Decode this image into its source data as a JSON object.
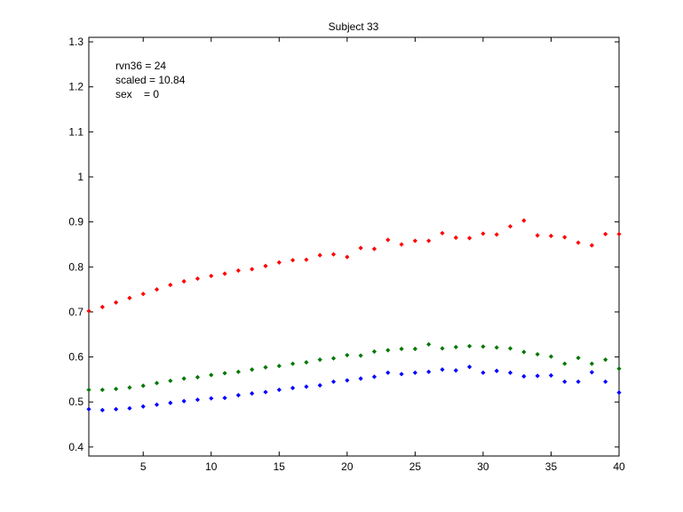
{
  "chart_data": {
    "type": "scatter",
    "title": "Subject 33",
    "xlabel": "",
    "ylabel": "",
    "xlim": [
      1,
      40
    ],
    "ylim": [
      0.38,
      1.31
    ],
    "xticks": [
      5,
      10,
      15,
      20,
      25,
      30,
      35,
      40
    ],
    "yticks": [
      0.4,
      0.5,
      0.6,
      0.7,
      0.8,
      0.9,
      1,
      1.1,
      1.2,
      1.3
    ],
    "ytick_labels": [
      "0.4",
      "0.5",
      "0.6",
      "0.7",
      "0.8",
      "0.9",
      "1",
      "1.1",
      "1.2",
      "1.3"
    ],
    "grid": false,
    "annotations": [
      "rvn36 = 24",
      "scaled = 10.84",
      "sex    = 0"
    ],
    "x": [
      1,
      2,
      3,
      4,
      5,
      6,
      7,
      8,
      9,
      10,
      11,
      12,
      13,
      14,
      15,
      16,
      17,
      18,
      19,
      20,
      21,
      22,
      23,
      24,
      25,
      26,
      27,
      28,
      29,
      30,
      31,
      32,
      33,
      34,
      35,
      36,
      37,
      38,
      39,
      40
    ],
    "series": [
      {
        "color": "#ff0000",
        "values": [
          0.702,
          0.711,
          0.721,
          0.731,
          0.74,
          0.75,
          0.76,
          0.768,
          0.774,
          0.78,
          0.785,
          0.792,
          0.795,
          0.802,
          0.81,
          0.815,
          0.816,
          0.826,
          0.828,
          0.822,
          0.842,
          0.84,
          0.86,
          0.85,
          0.858,
          0.858,
          0.875,
          0.865,
          0.864,
          0.874,
          0.872,
          0.89,
          0.903,
          0.87,
          0.869,
          0.866,
          0.854,
          0.848,
          0.873,
          0.873
        ]
      },
      {
        "color": "#007700",
        "values": [
          0.527,
          0.527,
          0.529,
          0.532,
          0.536,
          0.542,
          0.547,
          0.552,
          0.555,
          0.56,
          0.564,
          0.567,
          0.572,
          0.577,
          0.58,
          0.585,
          0.588,
          0.594,
          0.597,
          0.604,
          0.603,
          0.612,
          0.615,
          0.618,
          0.618,
          0.628,
          0.619,
          0.622,
          0.624,
          0.623,
          0.621,
          0.619,
          0.611,
          0.606,
          0.601,
          0.585,
          0.598,
          0.585,
          0.594,
          0.574
        ]
      },
      {
        "color": "#0000ff",
        "values": [
          0.484,
          0.482,
          0.484,
          0.486,
          0.49,
          0.494,
          0.498,
          0.502,
          0.505,
          0.508,
          0.509,
          0.515,
          0.519,
          0.522,
          0.527,
          0.531,
          0.534,
          0.537,
          0.545,
          0.548,
          0.552,
          0.556,
          0.565,
          0.562,
          0.565,
          0.567,
          0.572,
          0.57,
          0.578,
          0.565,
          0.569,
          0.565,
          0.557,
          0.558,
          0.559,
          0.545,
          0.545,
          0.566,
          0.545,
          0.521
        ]
      }
    ]
  }
}
